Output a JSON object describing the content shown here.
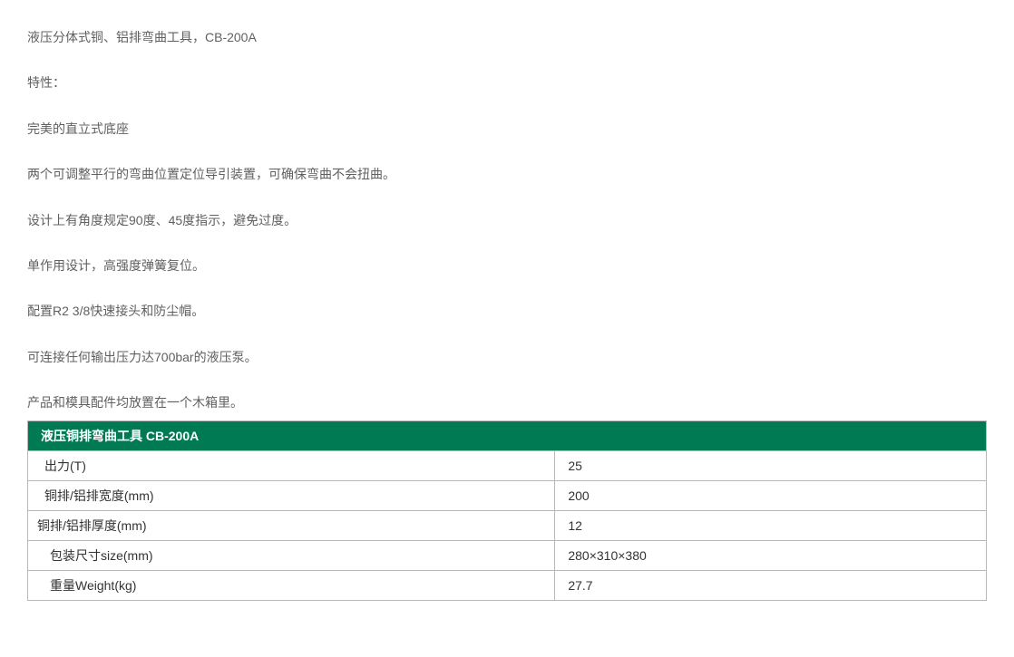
{
  "description": {
    "paragraphs": [
      "液压分体式铜、铝排弯曲工具，CB-200A",
      "特性：",
      "完美的直立式底座",
      "两个可调整平行的弯曲位置定位导引装置，可确保弯曲不会扭曲。",
      "设计上有角度规定90度、45度指示，避免过度。",
      "单作用设计，高强度弹簧复位。",
      "配置R2 3/8快速接头和防尘帽。",
      "可连接任何输出压力达700bar的液压泵。",
      "产品和模具配件均放置在一个木箱里。"
    ]
  },
  "table": {
    "header": "液压铜排弯曲工具 CB-200A",
    "header_bg_color": "#007a52",
    "header_text_color": "#ffffff",
    "border_color": "#b8b8b8",
    "rows": [
      {
        "label": "出力(T)",
        "value": "25",
        "indent": 1
      },
      {
        "label": "铜排/铝排宽度(mm)",
        "value": "200",
        "indent": 1
      },
      {
        "label": "铜排/铝排厚度(mm)",
        "value": "12",
        "indent": 2
      },
      {
        "label": "包装尺寸size(mm)",
        "value": "280×310×380",
        "indent": 3
      },
      {
        "label": "重量Weight(kg)",
        "value": "27.7",
        "indent": 3
      }
    ]
  }
}
